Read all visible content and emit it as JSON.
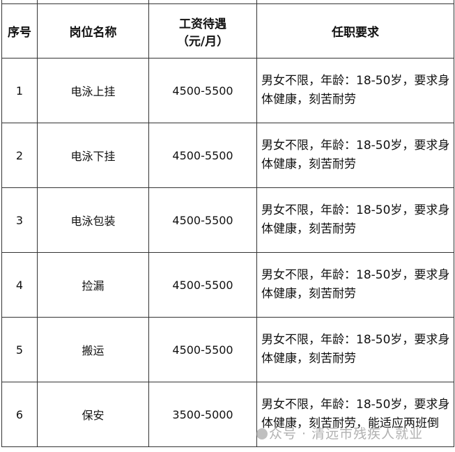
{
  "headers": [
    "序号",
    "岗位名称",
    "工资待遇（元/月）",
    "任职要求"
  ],
  "header_salary_line1": "工资待遇",
  "header_salary_line2": "（元/月）",
  "rows": [
    {
      "no": "1",
      "name": "电泳上挂",
      "salary": "4500-5500",
      "req": "男女不限，年龄：18-50岁，要求身体健康，刻苦耐劳"
    },
    {
      "no": "2",
      "name": "电泳下挂",
      "salary": "4500-5500",
      "req": "男女不限，年龄：18-50岁，要求身体健康，刻苦耐劳"
    },
    {
      "no": "3",
      "name": "电泳包装",
      "salary": "4500-5500",
      "req": "男女不限，年龄：18-50岁，要求身体健康，刻苦耐劳"
    },
    {
      "no": "4",
      "name": "捡漏",
      "salary": "4500-5500",
      "req": "男女不限，年龄：18-50岁，要求身体健康，刻苦耐劳"
    },
    {
      "no": "5",
      "name": "搬运",
      "salary": "4500-5500",
      "req": "男女不限，年龄：18-50岁，要求身体健康，刻苦耐劳"
    },
    {
      "no": "6",
      "name": "保安",
      "salary": "3500-5000",
      "req": "男女不限，年龄：18-50岁，要求身体健康，刻苦耐劳，能适应两班倒"
    }
  ],
  "watermark": "众号 · 清远市残疾人就业"
}
